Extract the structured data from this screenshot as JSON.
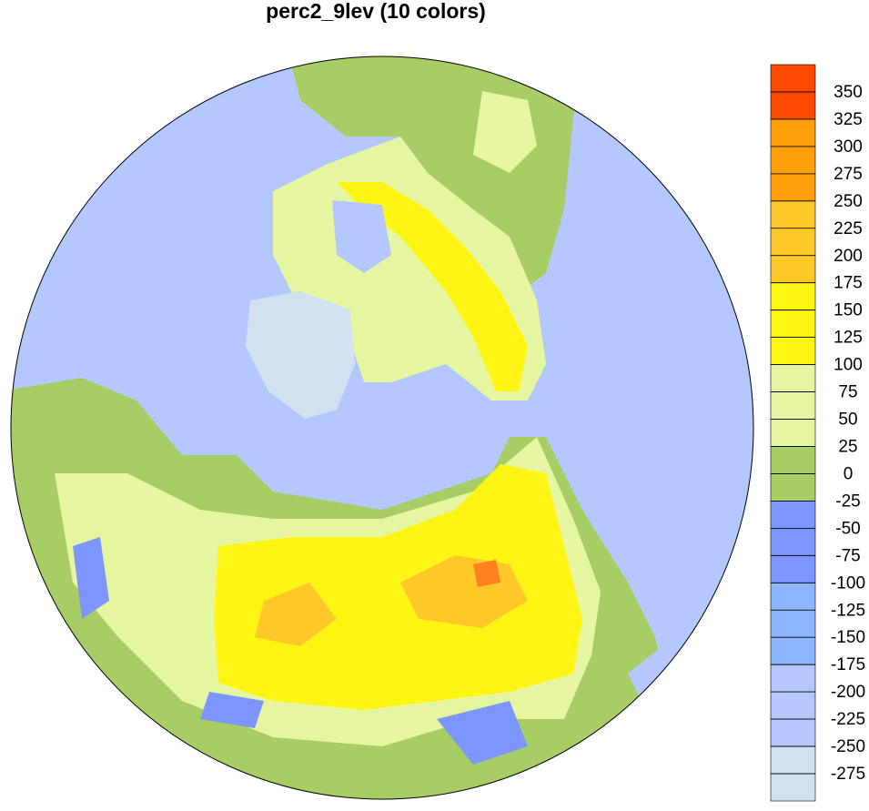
{
  "title": "perc2_9lev (10 colors)",
  "colorbar": {
    "levels": [
      350,
      325,
      300,
      275,
      250,
      225,
      200,
      175,
      150,
      125,
      100,
      75,
      50,
      25,
      0,
      -25,
      -50,
      -75,
      -100,
      -125,
      -150,
      -175,
      -200,
      -225,
      -250,
      -275
    ],
    "colors": [
      "#ff4a00",
      "#ff4a00",
      "#ffa00a",
      "#ffa00a",
      "#ffa00a",
      "#ffc828",
      "#ffc828",
      "#ffc828",
      "#fff514",
      "#fff514",
      "#fff514",
      "#e6f5a0",
      "#e6f5a0",
      "#e6f5a0",
      "#a8cd64",
      "#a8cd64",
      "#7d96ff",
      "#7d96ff",
      "#7d96ff",
      "#8cb4ff",
      "#8cb4ff",
      "#8cb4ff",
      "#b4c8ff",
      "#b4c8ff",
      "#b4c8ff",
      "#d2e1f0",
      "#d2e1f0"
    ]
  }
}
